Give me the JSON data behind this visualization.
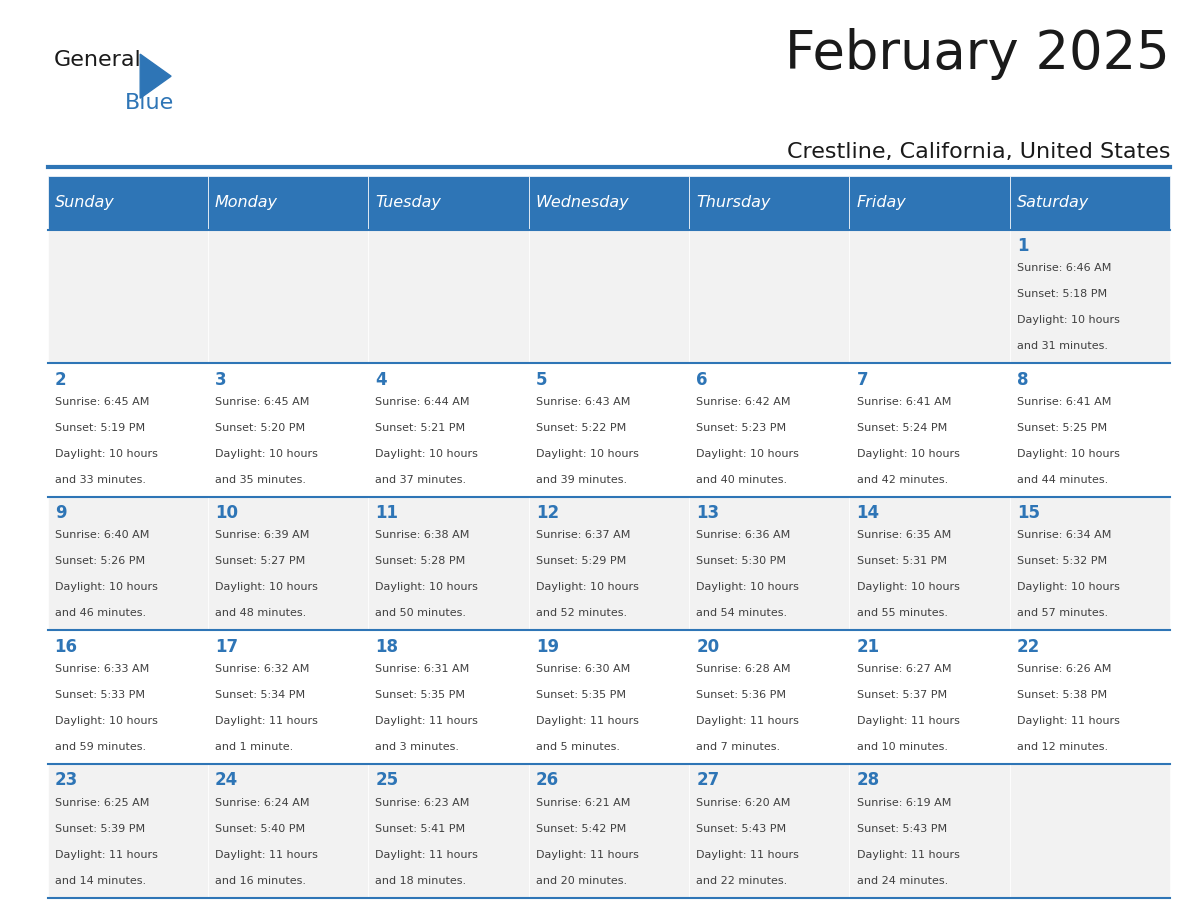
{
  "title": "February 2025",
  "subtitle": "Crestline, California, United States",
  "header_color": "#2E75B6",
  "header_text_color": "#FFFFFF",
  "day_names": [
    "Sunday",
    "Monday",
    "Tuesday",
    "Wednesday",
    "Thursday",
    "Friday",
    "Saturday"
  ],
  "background_color": "#FFFFFF",
  "cell_bg_even": "#F2F2F2",
  "cell_bg_odd": "#FFFFFF",
  "grid_color": "#2E75B6",
  "day_number_color": "#2E75B6",
  "text_color": "#404040",
  "logo_color1": "#1A1A1A",
  "logo_color2": "#2E75B6",
  "calendar_data": [
    {
      "day": 1,
      "col": 6,
      "row": 0,
      "sunrise": "6:46 AM",
      "sunset": "5:18 PM",
      "daylight": "10 hours and 31 minutes."
    },
    {
      "day": 2,
      "col": 0,
      "row": 1,
      "sunrise": "6:45 AM",
      "sunset": "5:19 PM",
      "daylight": "10 hours and 33 minutes."
    },
    {
      "day": 3,
      "col": 1,
      "row": 1,
      "sunrise": "6:45 AM",
      "sunset": "5:20 PM",
      "daylight": "10 hours and 35 minutes."
    },
    {
      "day": 4,
      "col": 2,
      "row": 1,
      "sunrise": "6:44 AM",
      "sunset": "5:21 PM",
      "daylight": "10 hours and 37 minutes."
    },
    {
      "day": 5,
      "col": 3,
      "row": 1,
      "sunrise": "6:43 AM",
      "sunset": "5:22 PM",
      "daylight": "10 hours and 39 minutes."
    },
    {
      "day": 6,
      "col": 4,
      "row": 1,
      "sunrise": "6:42 AM",
      "sunset": "5:23 PM",
      "daylight": "10 hours and 40 minutes."
    },
    {
      "day": 7,
      "col": 5,
      "row": 1,
      "sunrise": "6:41 AM",
      "sunset": "5:24 PM",
      "daylight": "10 hours and 42 minutes."
    },
    {
      "day": 8,
      "col": 6,
      "row": 1,
      "sunrise": "6:41 AM",
      "sunset": "5:25 PM",
      "daylight": "10 hours and 44 minutes."
    },
    {
      "day": 9,
      "col": 0,
      "row": 2,
      "sunrise": "6:40 AM",
      "sunset": "5:26 PM",
      "daylight": "10 hours and 46 minutes."
    },
    {
      "day": 10,
      "col": 1,
      "row": 2,
      "sunrise": "6:39 AM",
      "sunset": "5:27 PM",
      "daylight": "10 hours and 48 minutes."
    },
    {
      "day": 11,
      "col": 2,
      "row": 2,
      "sunrise": "6:38 AM",
      "sunset": "5:28 PM",
      "daylight": "10 hours and 50 minutes."
    },
    {
      "day": 12,
      "col": 3,
      "row": 2,
      "sunrise": "6:37 AM",
      "sunset": "5:29 PM",
      "daylight": "10 hours and 52 minutes."
    },
    {
      "day": 13,
      "col": 4,
      "row": 2,
      "sunrise": "6:36 AM",
      "sunset": "5:30 PM",
      "daylight": "10 hours and 54 minutes."
    },
    {
      "day": 14,
      "col": 5,
      "row": 2,
      "sunrise": "6:35 AM",
      "sunset": "5:31 PM",
      "daylight": "10 hours and 55 minutes."
    },
    {
      "day": 15,
      "col": 6,
      "row": 2,
      "sunrise": "6:34 AM",
      "sunset": "5:32 PM",
      "daylight": "10 hours and 57 minutes."
    },
    {
      "day": 16,
      "col": 0,
      "row": 3,
      "sunrise": "6:33 AM",
      "sunset": "5:33 PM",
      "daylight": "10 hours and 59 minutes."
    },
    {
      "day": 17,
      "col": 1,
      "row": 3,
      "sunrise": "6:32 AM",
      "sunset": "5:34 PM",
      "daylight": "11 hours and 1 minute."
    },
    {
      "day": 18,
      "col": 2,
      "row": 3,
      "sunrise": "6:31 AM",
      "sunset": "5:35 PM",
      "daylight": "11 hours and 3 minutes."
    },
    {
      "day": 19,
      "col": 3,
      "row": 3,
      "sunrise": "6:30 AM",
      "sunset": "5:35 PM",
      "daylight": "11 hours and 5 minutes."
    },
    {
      "day": 20,
      "col": 4,
      "row": 3,
      "sunrise": "6:28 AM",
      "sunset": "5:36 PM",
      "daylight": "11 hours and 7 minutes."
    },
    {
      "day": 21,
      "col": 5,
      "row": 3,
      "sunrise": "6:27 AM",
      "sunset": "5:37 PM",
      "daylight": "11 hours and 10 minutes."
    },
    {
      "day": 22,
      "col": 6,
      "row": 3,
      "sunrise": "6:26 AM",
      "sunset": "5:38 PM",
      "daylight": "11 hours and 12 minutes."
    },
    {
      "day": 23,
      "col": 0,
      "row": 4,
      "sunrise": "6:25 AM",
      "sunset": "5:39 PM",
      "daylight": "11 hours and 14 minutes."
    },
    {
      "day": 24,
      "col": 1,
      "row": 4,
      "sunrise": "6:24 AM",
      "sunset": "5:40 PM",
      "daylight": "11 hours and 16 minutes."
    },
    {
      "day": 25,
      "col": 2,
      "row": 4,
      "sunrise": "6:23 AM",
      "sunset": "5:41 PM",
      "daylight": "11 hours and 18 minutes."
    },
    {
      "day": 26,
      "col": 3,
      "row": 4,
      "sunrise": "6:21 AM",
      "sunset": "5:42 PM",
      "daylight": "11 hours and 20 minutes."
    },
    {
      "day": 27,
      "col": 4,
      "row": 4,
      "sunrise": "6:20 AM",
      "sunset": "5:43 PM",
      "daylight": "11 hours and 22 minutes."
    },
    {
      "day": 28,
      "col": 5,
      "row": 4,
      "sunrise": "6:19 AM",
      "sunset": "5:43 PM",
      "daylight": "11 hours and 24 minutes."
    }
  ]
}
